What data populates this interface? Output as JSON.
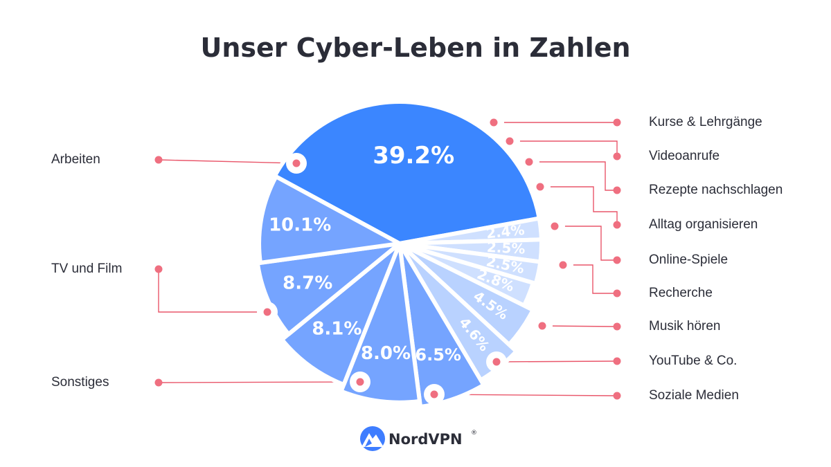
{
  "title": "Unser Cyber-Leben in Zahlen",
  "brand": {
    "name": "NordVPN",
    "mark": "®",
    "logo_icon": "nordvpn-mountain-logo"
  },
  "colors": {
    "accent_line": "#e9566a",
    "dot": "#ef6f80",
    "text": "#2b2d38",
    "logo_blue": "#3e7dff"
  },
  "chart_data": {
    "type": "pie",
    "title": "Unser Cyber-Leben in Zahlen",
    "unit": "%",
    "slices": [
      {
        "label": "Arbeiten",
        "value": 39.2,
        "display": "39.2%",
        "color": "#3b86ff"
      },
      {
        "label": "Kurse & Lehrgänge",
        "value": 2.4,
        "display": "2.4%",
        "color": "#cfe0ff"
      },
      {
        "label": "Videoanrufe",
        "value": 2.5,
        "display": "2.5%",
        "color": "#cfe0ff"
      },
      {
        "label": "Rezepte nachschlagen",
        "value": 2.5,
        "display": "2.5%",
        "color": "#cfe0ff"
      },
      {
        "label": "Alltag organisieren",
        "value": 2.8,
        "display": "2.8%",
        "color": "#cfe0ff"
      },
      {
        "label": "Online-Spiele",
        "value": 4.5,
        "display": "4.5%",
        "color": "#b9d2ff"
      },
      {
        "label": "Recherche",
        "value": 4.6,
        "display": "4.6%",
        "color": "#b9d2ff"
      },
      {
        "label": "Musik hören",
        "value": 6.5,
        "display": "6.5%",
        "color": "#75a4ff"
      },
      {
        "label": "YouTube & Co.",
        "value": 8.0,
        "display": "8.0%",
        "color": "#75a4ff"
      },
      {
        "label": "Soziale Medien",
        "value": 8.1,
        "display": "8.1%",
        "color": "#75a4ff"
      },
      {
        "label": "Sonstiges",
        "value": 8.7,
        "display": "8.7%",
        "color": "#75a4ff"
      },
      {
        "label": "TV und Film",
        "value": 10.1,
        "display": "10.1%",
        "color": "#75a4ff"
      }
    ]
  }
}
